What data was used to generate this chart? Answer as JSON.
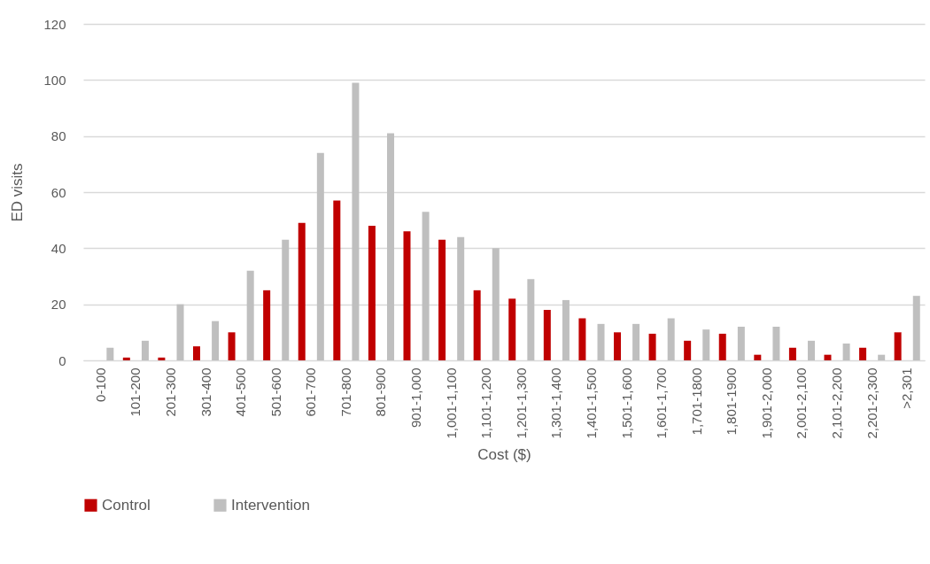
{
  "chart_data": {
    "type": "bar",
    "xlabel": "Cost ($)",
    "ylabel": "ED visits",
    "categories": [
      "0-100",
      "101-200",
      "201-300",
      "301-400",
      "401-500",
      "501-600",
      "601-700",
      "701-800",
      "801-900",
      "901-1,000",
      "1,001-1,100",
      "1,101-1,200",
      "1,201-1,300",
      "1,301-1,400",
      "1,401-1,500",
      "1,501-1,600",
      "1,601-1,700",
      "1,701-1800",
      "1,801-1900",
      "1,901-2,000",
      "2,001-2,100",
      "2,101-2,200",
      "2,201-2,300",
      ">2,301"
    ],
    "series": [
      {
        "name": "Control",
        "color": "#c00000",
        "values": [
          0,
          1,
          1,
          5,
          10,
          25,
          49,
          57,
          48,
          46,
          43,
          25,
          22,
          18,
          15,
          10,
          9.5,
          7,
          9.5,
          2,
          4.5,
          2,
          4.5,
          10
        ]
      },
      {
        "name": "Intervention",
        "color": "#bfbfbf",
        "values": [
          4.5,
          7,
          20,
          14,
          32,
          43,
          74,
          99,
          81,
          53,
          44,
          40,
          29,
          21.5,
          13,
          13,
          15,
          11,
          12,
          12,
          7,
          6,
          2,
          23
        ]
      }
    ],
    "ylim": [
      0,
      120
    ],
    "yticks": [
      0,
      20,
      40,
      60,
      80,
      100,
      120
    ],
    "grid": "y",
    "legend": "bottom"
  }
}
